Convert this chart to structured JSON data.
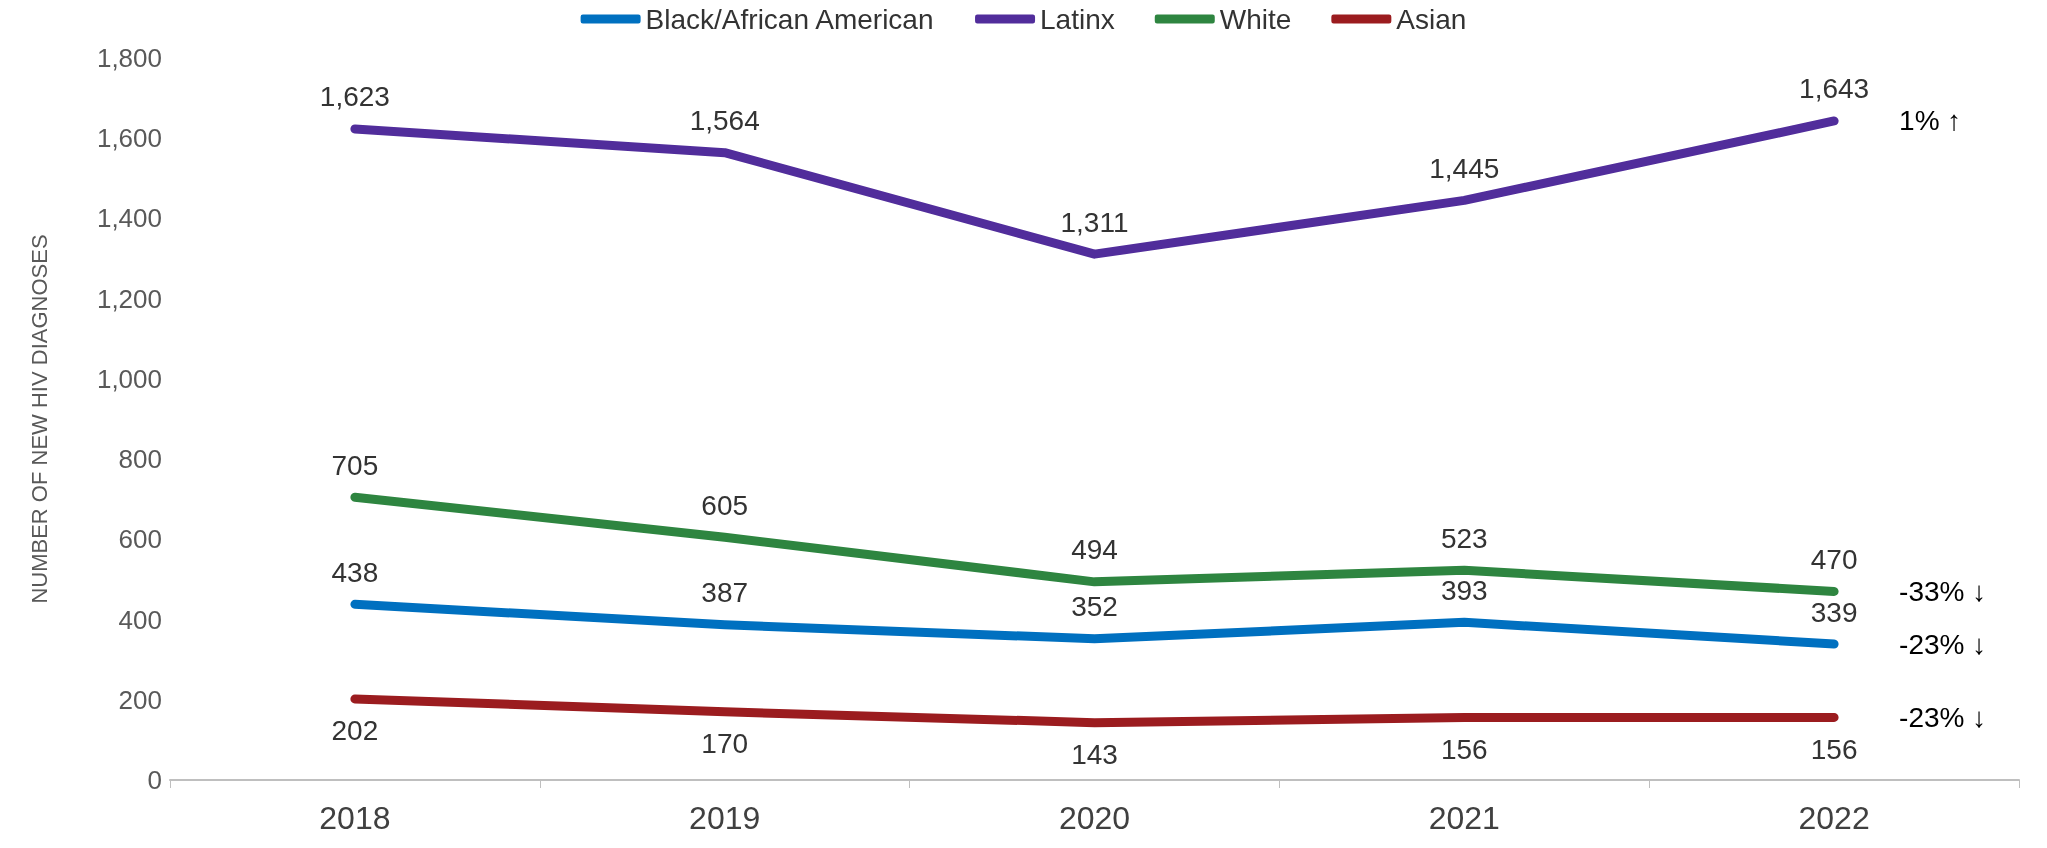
{
  "chart_data": {
    "type": "line",
    "ylabel": "NUMBER OF NEW HIV DIAGNOSES",
    "categories": [
      "2018",
      "2019",
      "2020",
      "2021",
      "2022"
    ],
    "series": [
      {
        "name": "Black/African American",
        "color": "#0070c0",
        "values": [
          438,
          387,
          352,
          393,
          339
        ],
        "value_labels": [
          "438",
          "387",
          "352",
          "393",
          "339"
        ]
      },
      {
        "name": "Latinx",
        "color": "#512d9b",
        "values": [
          1623,
          1564,
          1311,
          1445,
          1643
        ],
        "value_labels": [
          "1,623",
          "1,564",
          "1,311",
          "1,445",
          "1,643"
        ]
      },
      {
        "name": "White",
        "color": "#2e8540",
        "values": [
          705,
          605,
          494,
          523,
          470
        ],
        "value_labels": [
          "705",
          "605",
          "494",
          "523",
          "470"
        ]
      },
      {
        "name": "Asian",
        "color": "#9b1c1f",
        "values": [
          202,
          170,
          143,
          156,
          156
        ],
        "value_labels": [
          "202",
          "170",
          "143",
          "156",
          "156"
        ]
      }
    ],
    "ylim": [
      0,
      1800
    ],
    "yticks": [
      0,
      200,
      400,
      600,
      800,
      {
        "value": 1000,
        "label": "1,000"
      },
      {
        "value": 1200,
        "label": "1,200"
      },
      {
        "value": 1400,
        "label": "1,400"
      },
      {
        "value": 1600,
        "label": "1,600"
      },
      {
        "value": 1800,
        "label": "1,800"
      }
    ],
    "grid": false,
    "legend": "top",
    "marker": "none",
    "line_style": "solid",
    "annotations": [
      {
        "text": "1% ↑",
        "x": "2022",
        "y": 1643
      },
      {
        "text": "-33% ↓",
        "x": "2022",
        "y": 470
      },
      {
        "text": "-23% ↓",
        "x": "2022",
        "y": 339
      },
      {
        "text": "-23% ↓",
        "x": "2022",
        "y": 156
      }
    ]
  }
}
